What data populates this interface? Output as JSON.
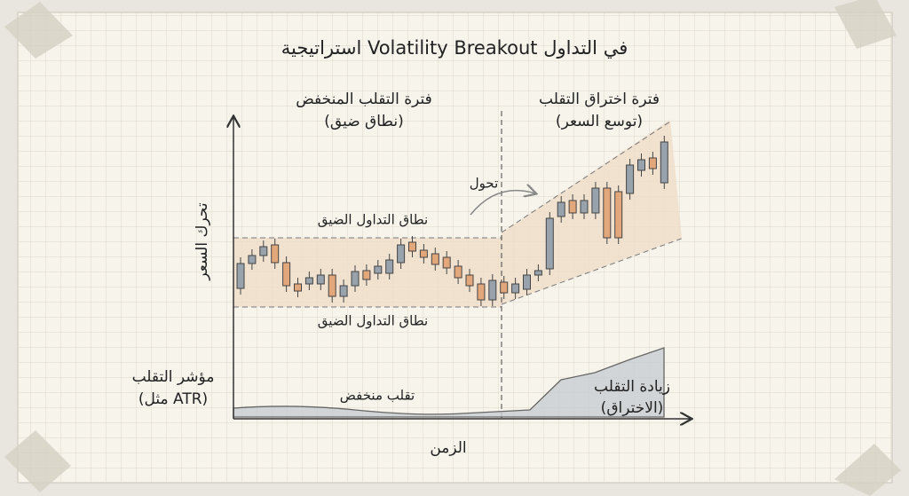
{
  "header": {
    "title": "استراتيجية Volatility Breakout في التداول"
  },
  "regions": [
    {
      "title": "فترة التقلب المنخفض",
      "subtitle": "(نطاق ضيق)"
    },
    {
      "title": "فترة اختراق التقلب",
      "subtitle": "(توسع السعر)"
    }
  ],
  "axes": {
    "y_label": "تحرك السعر",
    "x_label": "الزمن"
  },
  "annotations": {
    "shift": "تحول",
    "range_top": "نطاق التداول الضيق",
    "range_bottom": "نطاق التداول الضيق"
  },
  "indicator": {
    "label": "مؤشر التقلب",
    "sublabel": "(مثل ATR)",
    "low": "تقلب منخفض",
    "high": "زيادة التقلب",
    "high_sub": "(الاختراق)"
  }
}
